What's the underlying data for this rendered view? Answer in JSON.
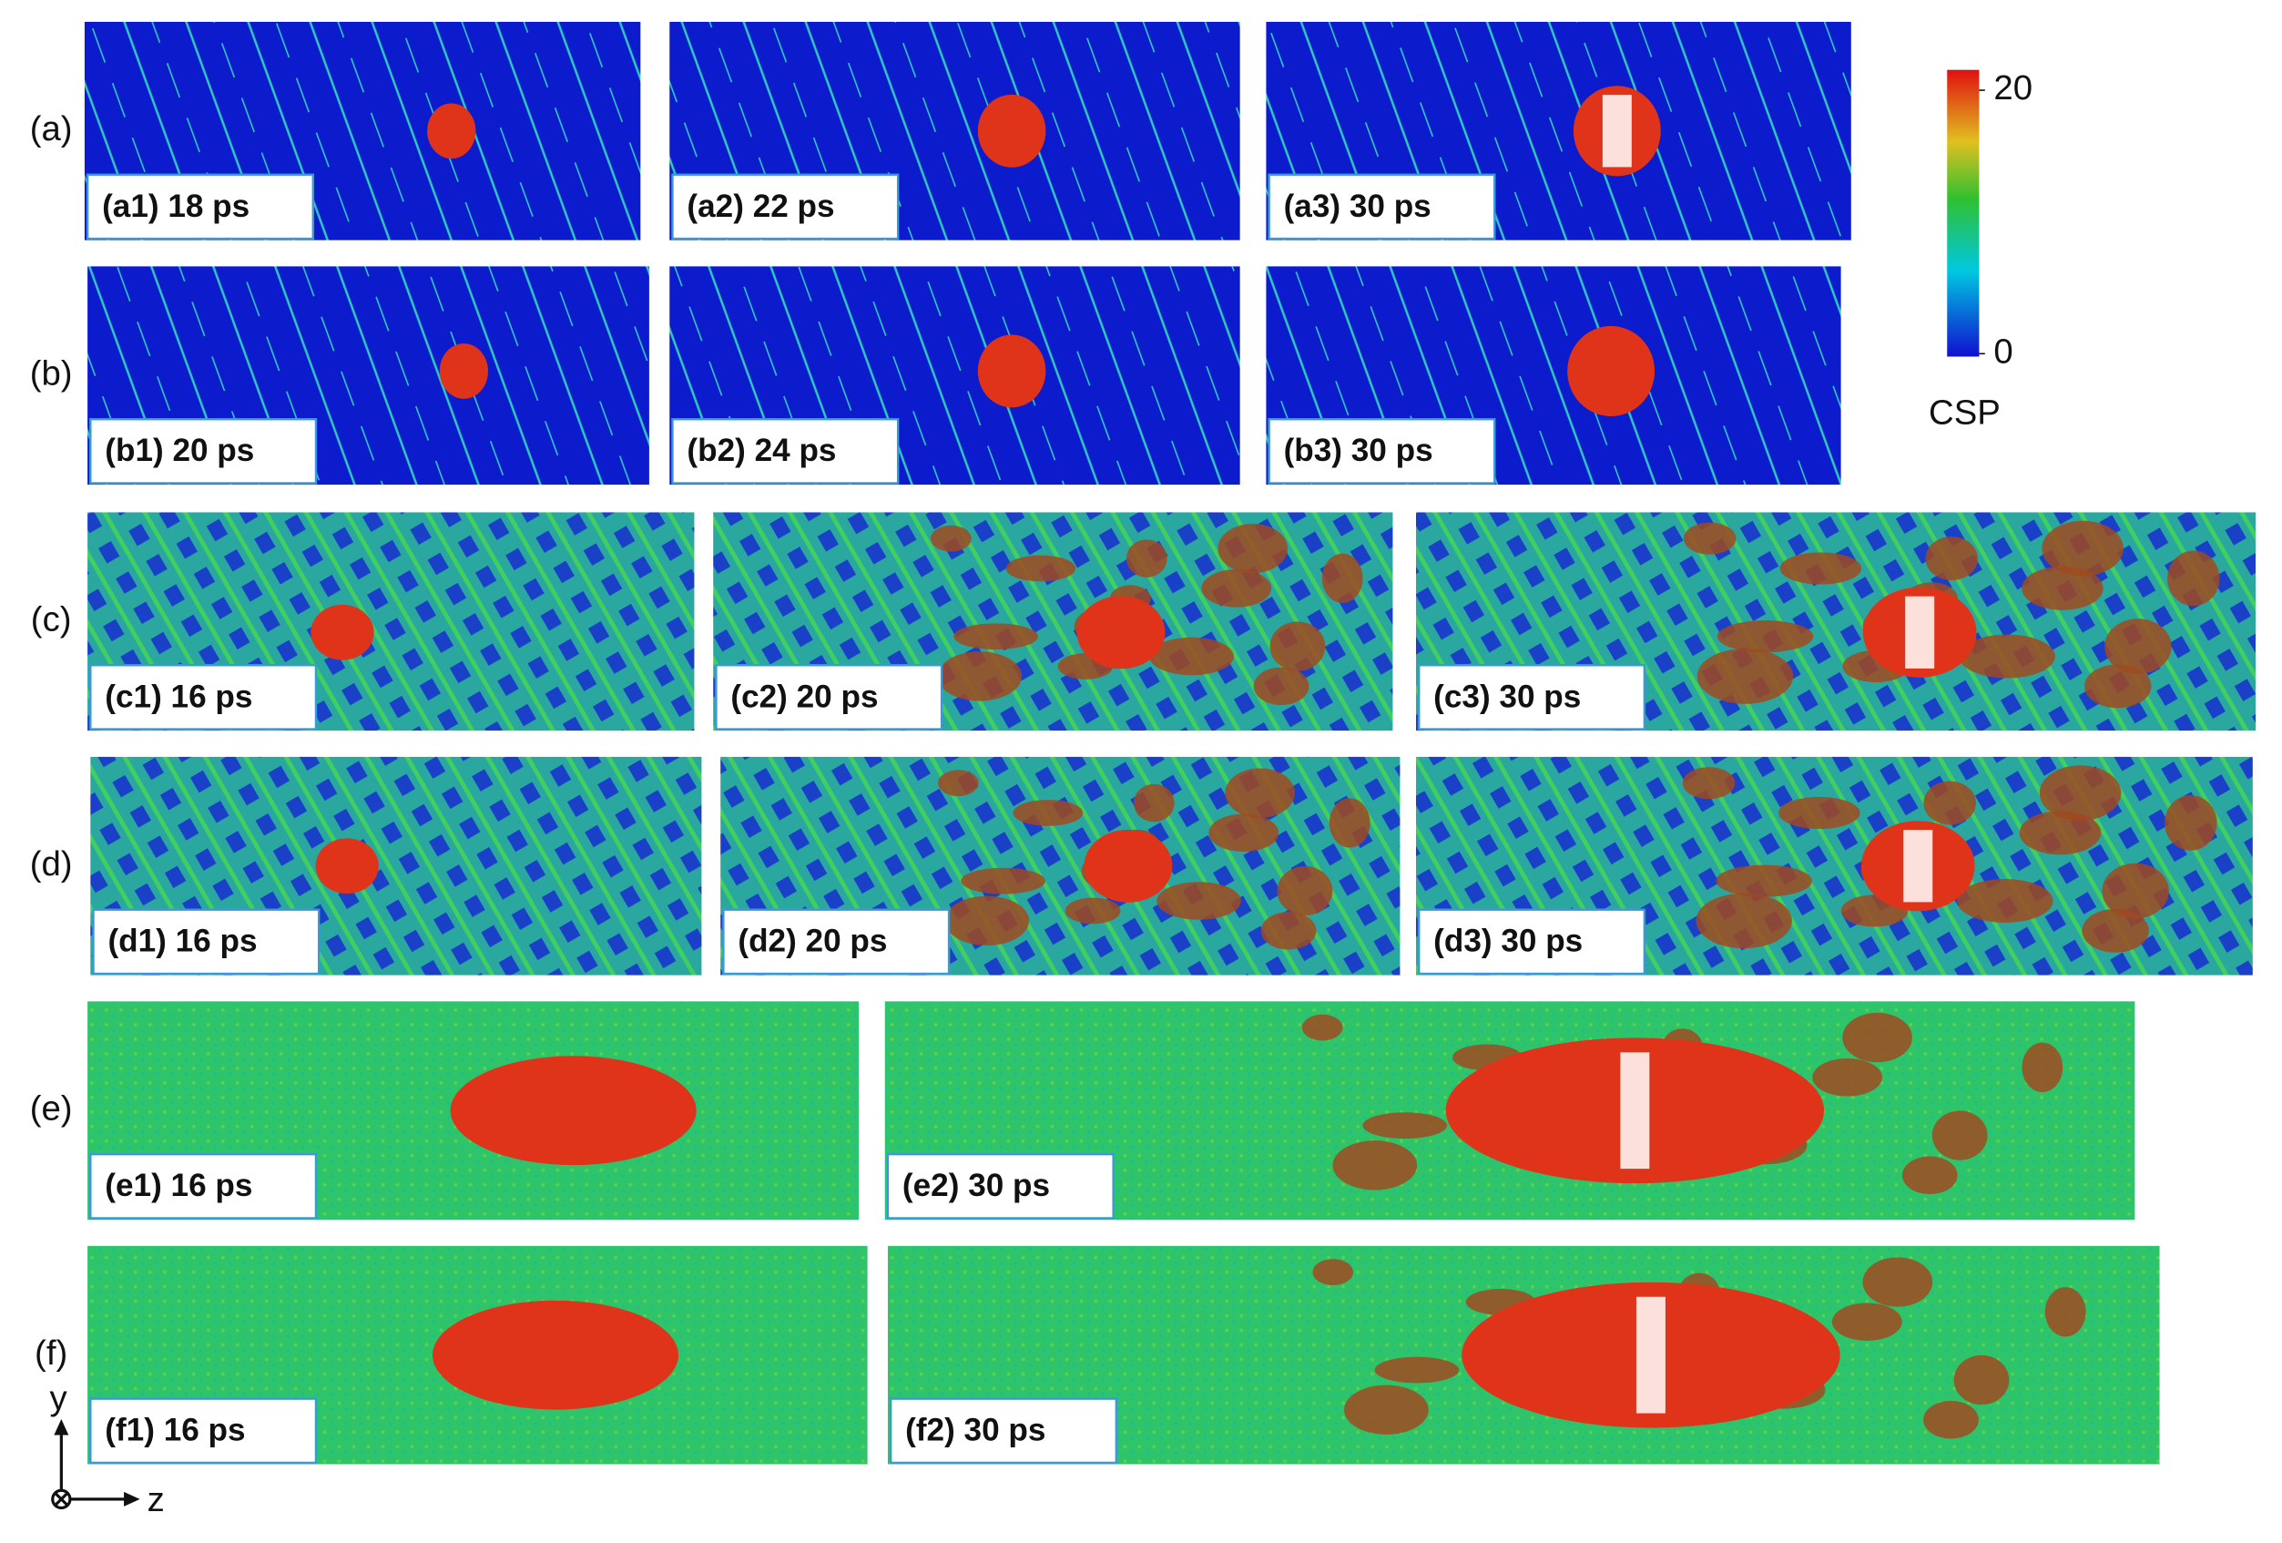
{
  "rows": [
    {
      "label": "(a)",
      "panels": [
        {
          "label": "(a1) 18 ps"
        },
        {
          "label": "(a2) 22 ps"
        },
        {
          "label": "(a3) 30 ps"
        }
      ]
    },
    {
      "label": "(b)",
      "panels": [
        {
          "label": "(b1) 20 ps"
        },
        {
          "label": "(b2) 24 ps"
        },
        {
          "label": "(b3) 30 ps"
        }
      ]
    },
    {
      "label": "(c)",
      "panels": [
        {
          "label": "(c1) 16 ps"
        },
        {
          "label": "(c2) 20 ps"
        },
        {
          "label": "(c3) 30 ps"
        }
      ]
    },
    {
      "label": "(d)",
      "panels": [
        {
          "label": "(d1) 16 ps"
        },
        {
          "label": "(d2) 20 ps"
        },
        {
          "label": "(d3) 30 ps"
        }
      ]
    },
    {
      "label": "(e)",
      "panels": [
        {
          "label": "(e1) 16 ps"
        },
        {
          "label": "(e2) 30 ps"
        }
      ]
    },
    {
      "label": "(f)",
      "panels": [
        {
          "label": "(f1) 16 ps"
        },
        {
          "label": "(f2) 30 ps"
        }
      ]
    }
  ],
  "colorbar": {
    "label": "CSP",
    "ticks": [
      0,
      20
    ]
  },
  "axes": {
    "y": "y",
    "z": "z"
  }
}
